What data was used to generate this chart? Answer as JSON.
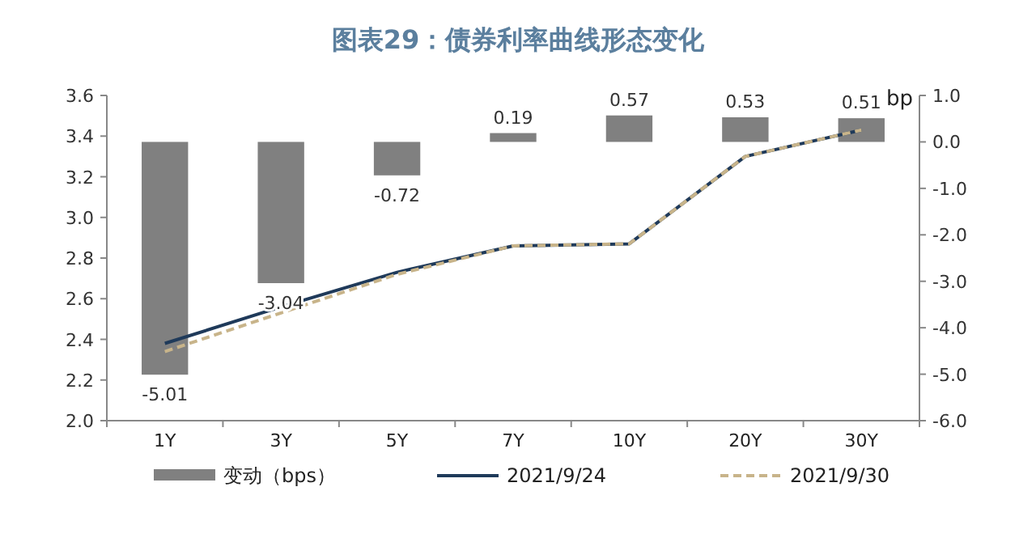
{
  "chart_data": {
    "type": "bar",
    "title": "图表29：债券利率曲线形态变化",
    "categories": [
      "1Y",
      "3Y",
      "5Y",
      "7Y",
      "10Y",
      "20Y",
      "30Y"
    ],
    "series": [
      {
        "name": "变动（bps）",
        "axis": "y2",
        "color": "#808080",
        "values": [
          -5.01,
          -3.04,
          -0.72,
          0.19,
          0.57,
          0.53,
          0.51
        ],
        "value_labels": [
          "-5.01",
          "-3.04",
          "-0.72",
          "0.19",
          "0.57",
          "0.53",
          "0.51"
        ]
      },
      {
        "name": "2021/9/24",
        "type": "line",
        "color": "#1f3a5a",
        "line_style": "solid",
        "values": [
          2.38,
          2.56,
          2.73,
          2.86,
          2.87,
          3.3,
          3.43
        ]
      },
      {
        "name": "2021/9/30",
        "type": "line",
        "color": "#c8b48a",
        "line_style": "dashed",
        "values": [
          2.34,
          2.53,
          2.72,
          2.86,
          2.87,
          3.3,
          3.43
        ]
      }
    ],
    "ylim": [
      2.0,
      3.6
    ],
    "yticks": [
      {
        "value": 2.0,
        "label": "2.0"
      },
      {
        "value": 2.2,
        "label": "2.2"
      },
      {
        "value": 2.4,
        "label": "2.4"
      },
      {
        "value": 2.6,
        "label": "2.6"
      },
      {
        "value": 2.8,
        "label": "2.8"
      },
      {
        "value": 3.0,
        "label": "3.0"
      },
      {
        "value": 3.2,
        "label": "3.2"
      },
      {
        "value": 3.4,
        "label": "3.4"
      },
      {
        "value": 3.6,
        "label": "3.6"
      }
    ],
    "y2lim": [
      -6,
      1
    ],
    "y2ticks": [
      {
        "value": -6,
        "label": "-6.0"
      },
      {
        "value": -5,
        "label": "-5.0"
      },
      {
        "value": -4,
        "label": "-4.0"
      },
      {
        "value": -3,
        "label": "-3.0"
      },
      {
        "value": -2,
        "label": "-2.0"
      },
      {
        "value": -1,
        "label": "-1.0"
      },
      {
        "value": 0,
        "label": "0.0"
      },
      {
        "value": 1,
        "label": "1.0"
      }
    ],
    "y2label": "bp",
    "grid": false,
    "legend": "bottom"
  }
}
